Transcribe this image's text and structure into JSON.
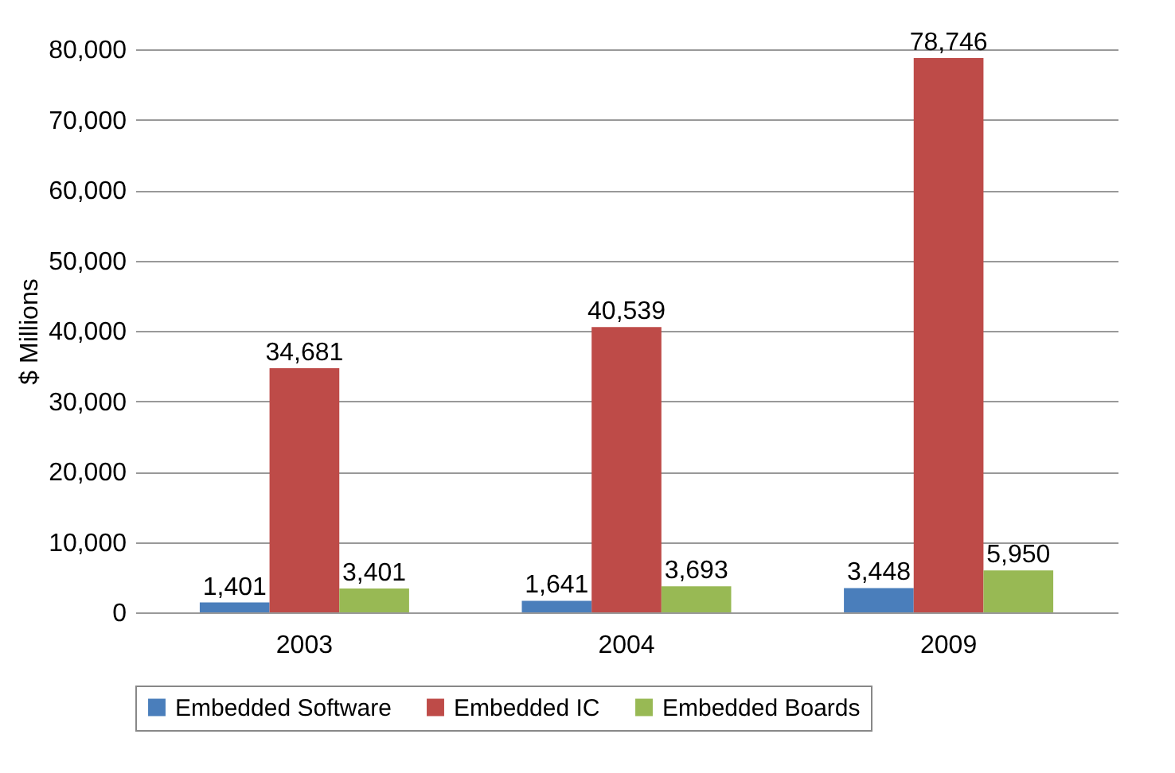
{
  "chart_data": {
    "type": "bar",
    "ylabel": "$ Millions",
    "categories": [
      "2003",
      "2004",
      "2009"
    ],
    "series": [
      {
        "name": "Embedded Software",
        "color": "#4a7ebb",
        "values": [
          1401,
          1641,
          3448
        ],
        "value_labels": [
          "1,401",
          "1,641",
          "3,448"
        ]
      },
      {
        "name": "Embedded IC",
        "color": "#be4b48",
        "values": [
          34681,
          40539,
          78746
        ],
        "value_labels": [
          "34,681",
          "40,539",
          "78,746"
        ]
      },
      {
        "name": "Embedded Boards",
        "color": "#98b954",
        "values": [
          3401,
          3693,
          5950
        ],
        "value_labels": [
          "3,401",
          "3,693",
          "5,950"
        ]
      }
    ],
    "ylim": [
      0,
      80000
    ],
    "yticks": [
      {
        "value": 0,
        "label": "0"
      },
      {
        "value": 10000,
        "label": "10,000"
      },
      {
        "value": 20000,
        "label": "20,000"
      },
      {
        "value": 30000,
        "label": "30,000"
      },
      {
        "value": 40000,
        "label": "40,000"
      },
      {
        "value": 50000,
        "label": "50,000"
      },
      {
        "value": 60000,
        "label": "60,000"
      },
      {
        "value": 70000,
        "label": "70,000"
      },
      {
        "value": 80000,
        "label": "80,000"
      }
    ],
    "grid": "y",
    "legend": "bottom"
  }
}
